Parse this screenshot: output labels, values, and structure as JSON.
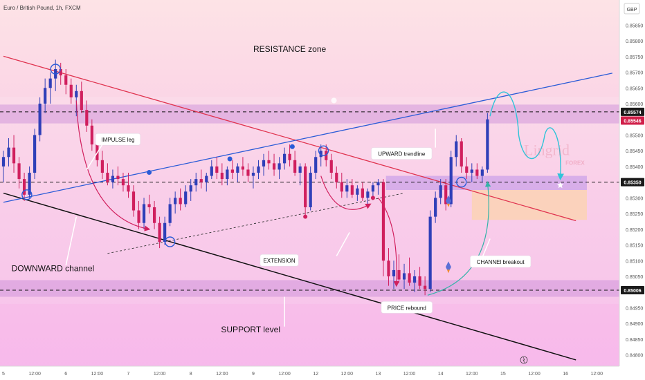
{
  "header": {
    "symbol_title": "Euro / British Pound, 1h, FXCM",
    "currency": "GBP"
  },
  "chart_data": {
    "type": "candlestick",
    "title": "Euro / British Pound, 1h, FXCM",
    "ylabel": "GBP",
    "ylim": [
      0.84764,
      0.8593
    ],
    "y_ticks": [
      0.848,
      0.8485,
      0.849,
      0.8495,
      0.85,
      0.8505,
      0.851,
      0.8515,
      0.852,
      0.8525,
      0.853,
      0.8535,
      0.854,
      0.8545,
      0.855,
      0.8555,
      0.856,
      0.8565,
      0.857,
      0.8575,
      0.858,
      0.8585
    ],
    "y_tick_labels": [
      "0.84800",
      "0.84850",
      "0.84900",
      "0.84950",
      "0.85000",
      "0.85050",
      "0.85100",
      "0.85150",
      "0.85200",
      "0.85250",
      "0.85300",
      "0.85350",
      "0.85400",
      "0.85450",
      "0.85500",
      "0.85550",
      "0.85600",
      "0.85650",
      "0.85700",
      "0.85750",
      "0.85800",
      "0.85850"
    ],
    "x_tick_labels": [
      "5",
      "12:00",
      "6",
      "12:00",
      "7",
      "12:00",
      "8",
      "12:00",
      "9",
      "12:00",
      "12",
      "12:00",
      "13",
      "12:00",
      "14",
      "12:00",
      "15",
      "12:00",
      "16",
      "12:00"
    ],
    "x_tick_hours": [
      0,
      12,
      24,
      36,
      48,
      60,
      72,
      84,
      96,
      108,
      120,
      132,
      144,
      156,
      168,
      180,
      192,
      204,
      216,
      228
    ],
    "price_labels": [
      {
        "value": 0.85574,
        "text": "0.85574",
        "bg": "#1a1a1a"
      },
      {
        "value": 0.85546,
        "text": "0.85546",
        "bg": "#d1204a"
      },
      {
        "value": 0.8535,
        "text": "0.85350",
        "bg": "#1a1a1a"
      },
      {
        "value": 0.85006,
        "text": "0.85006",
        "bg": "#1a1a1a"
      }
    ],
    "horizontal_levels": [
      0.85574,
      0.8535,
      0.85006
    ],
    "zones": [
      {
        "name": "resistance",
        "from": 0.85537,
        "to": 0.85597
      },
      {
        "name": "support",
        "from": 0.84985,
        "to": 0.85038
      },
      {
        "name": "breakout-box",
        "from": 0.85325,
        "to": 0.8537
      }
    ],
    "trendlines": [
      {
        "name": "channel-upper",
        "color": "#e0334f",
        "from": [
          0,
          0.85751
        ],
        "to": [
          220,
          0.85227
        ]
      },
      {
        "name": "channel-lower",
        "color": "#111111",
        "from": [
          0,
          0.85315
        ],
        "to": [
          220,
          0.84784
        ]
      },
      {
        "name": "upward-trendline",
        "color": "#2a5bd7",
        "from": [
          0,
          0.85286
        ],
        "to": [
          234,
          0.85697
        ]
      },
      {
        "name": "extension-line",
        "color": "#333333",
        "from": [
          40,
          0.85123
        ],
        "to": [
          154,
          0.85315
        ]
      }
    ],
    "candles": [
      {
        "t": 0,
        "o": 0.854,
        "h": 0.8545,
        "l": 0.8535,
        "c": 0.8543
      },
      {
        "t": 2,
        "o": 0.8543,
        "h": 0.8549,
        "l": 0.854,
        "c": 0.8546
      },
      {
        "t": 4,
        "o": 0.8546,
        "h": 0.855,
        "l": 0.8538,
        "c": 0.8541
      },
      {
        "t": 6,
        "o": 0.8541,
        "h": 0.8543,
        "l": 0.8533,
        "c": 0.8536
      },
      {
        "t": 8,
        "o": 0.8536,
        "h": 0.8538,
        "l": 0.8529,
        "c": 0.8531
      },
      {
        "t": 10,
        "o": 0.8531,
        "h": 0.854,
        "l": 0.853,
        "c": 0.8538
      },
      {
        "t": 12,
        "o": 0.8538,
        "h": 0.8552,
        "l": 0.8536,
        "c": 0.855
      },
      {
        "t": 14,
        "o": 0.855,
        "h": 0.8562,
        "l": 0.8548,
        "c": 0.856
      },
      {
        "t": 16,
        "o": 0.856,
        "h": 0.8568,
        "l": 0.8557,
        "c": 0.8565
      },
      {
        "t": 18,
        "o": 0.8565,
        "h": 0.857,
        "l": 0.856,
        "c": 0.8568
      },
      {
        "t": 20,
        "o": 0.8568,
        "h": 0.8574,
        "l": 0.8564,
        "c": 0.8571
      },
      {
        "t": 22,
        "o": 0.8571,
        "h": 0.8573,
        "l": 0.8566,
        "c": 0.8569
      },
      {
        "t": 24,
        "o": 0.8569,
        "h": 0.8571,
        "l": 0.8563,
        "c": 0.8566
      },
      {
        "t": 26,
        "o": 0.8566,
        "h": 0.8568,
        "l": 0.856,
        "c": 0.8562
      },
      {
        "t": 28,
        "o": 0.8562,
        "h": 0.8566,
        "l": 0.8556,
        "c": 0.8564
      },
      {
        "t": 30,
        "o": 0.8564,
        "h": 0.8567,
        "l": 0.8557,
        "c": 0.8558
      },
      {
        "t": 32,
        "o": 0.8558,
        "h": 0.8561,
        "l": 0.8551,
        "c": 0.8553
      },
      {
        "t": 34,
        "o": 0.8553,
        "h": 0.8555,
        "l": 0.8545,
        "c": 0.8547
      },
      {
        "t": 36,
        "o": 0.8547,
        "h": 0.8549,
        "l": 0.854,
        "c": 0.8542
      },
      {
        "t": 38,
        "o": 0.8542,
        "h": 0.8545,
        "l": 0.8536,
        "c": 0.8538
      },
      {
        "t": 40,
        "o": 0.8538,
        "h": 0.8541,
        "l": 0.8534,
        "c": 0.8535
      },
      {
        "t": 42,
        "o": 0.8535,
        "h": 0.8539,
        "l": 0.8533,
        "c": 0.8537
      },
      {
        "t": 44,
        "o": 0.8537,
        "h": 0.854,
        "l": 0.8534,
        "c": 0.8536
      },
      {
        "t": 46,
        "o": 0.8536,
        "h": 0.8538,
        "l": 0.8532,
        "c": 0.8534
      },
      {
        "t": 48,
        "o": 0.8534,
        "h": 0.8538,
        "l": 0.853,
        "c": 0.8532
      },
      {
        "t": 50,
        "o": 0.8532,
        "h": 0.8534,
        "l": 0.8524,
        "c": 0.8526
      },
      {
        "t": 52,
        "o": 0.8526,
        "h": 0.8529,
        "l": 0.852,
        "c": 0.8522
      },
      {
        "t": 54,
        "o": 0.8522,
        "h": 0.853,
        "l": 0.852,
        "c": 0.8528
      },
      {
        "t": 56,
        "o": 0.8528,
        "h": 0.8531,
        "l": 0.8525,
        "c": 0.8527
      },
      {
        "t": 58,
        "o": 0.8527,
        "h": 0.8529,
        "l": 0.852,
        "c": 0.8522
      },
      {
        "t": 60,
        "o": 0.8522,
        "h": 0.8524,
        "l": 0.8514,
        "c": 0.8516
      },
      {
        "t": 62,
        "o": 0.8516,
        "h": 0.8524,
        "l": 0.8515,
        "c": 0.8522
      },
      {
        "t": 64,
        "o": 0.8522,
        "h": 0.853,
        "l": 0.8521,
        "c": 0.8528
      },
      {
        "t": 66,
        "o": 0.8528,
        "h": 0.8532,
        "l": 0.8525,
        "c": 0.853
      },
      {
        "t": 68,
        "o": 0.853,
        "h": 0.8533,
        "l": 0.8526,
        "c": 0.8528
      },
      {
        "t": 70,
        "o": 0.8528,
        "h": 0.8534,
        "l": 0.8527,
        "c": 0.8532
      },
      {
        "t": 72,
        "o": 0.8532,
        "h": 0.8536,
        "l": 0.8529,
        "c": 0.8534
      },
      {
        "t": 74,
        "o": 0.8534,
        "h": 0.8538,
        "l": 0.8532,
        "c": 0.8536
      },
      {
        "t": 76,
        "o": 0.8536,
        "h": 0.8539,
        "l": 0.8533,
        "c": 0.8535
      },
      {
        "t": 78,
        "o": 0.8535,
        "h": 0.8538,
        "l": 0.8532,
        "c": 0.8537
      },
      {
        "t": 80,
        "o": 0.8537,
        "h": 0.8542,
        "l": 0.8536,
        "c": 0.854
      },
      {
        "t": 82,
        "o": 0.854,
        "h": 0.8543,
        "l": 0.8536,
        "c": 0.8538
      },
      {
        "t": 84,
        "o": 0.8538,
        "h": 0.8541,
        "l": 0.8534,
        "c": 0.8536
      },
      {
        "t": 86,
        "o": 0.8536,
        "h": 0.854,
        "l": 0.8534,
        "c": 0.8539
      },
      {
        "t": 88,
        "o": 0.8539,
        "h": 0.8542,
        "l": 0.8536,
        "c": 0.8538
      },
      {
        "t": 90,
        "o": 0.8538,
        "h": 0.8541,
        "l": 0.8535,
        "c": 0.854
      },
      {
        "t": 92,
        "o": 0.854,
        "h": 0.8543,
        "l": 0.8537,
        "c": 0.8539
      },
      {
        "t": 94,
        "o": 0.8539,
        "h": 0.8541,
        "l": 0.8535,
        "c": 0.8537
      },
      {
        "t": 96,
        "o": 0.8537,
        "h": 0.854,
        "l": 0.8533,
        "c": 0.8538
      },
      {
        "t": 98,
        "o": 0.8538,
        "h": 0.8542,
        "l": 0.8536,
        "c": 0.854
      },
      {
        "t": 100,
        "o": 0.854,
        "h": 0.8544,
        "l": 0.8537,
        "c": 0.8542
      },
      {
        "t": 102,
        "o": 0.8542,
        "h": 0.8545,
        "l": 0.8539,
        "c": 0.8541
      },
      {
        "t": 104,
        "o": 0.8541,
        "h": 0.8544,
        "l": 0.8537,
        "c": 0.8539
      },
      {
        "t": 106,
        "o": 0.8539,
        "h": 0.8543,
        "l": 0.8536,
        "c": 0.8541
      },
      {
        "t": 108,
        "o": 0.8541,
        "h": 0.8546,
        "l": 0.8539,
        "c": 0.8544
      },
      {
        "t": 110,
        "o": 0.8544,
        "h": 0.8547,
        "l": 0.854,
        "c": 0.8542
      },
      {
        "t": 112,
        "o": 0.8542,
        "h": 0.8545,
        "l": 0.8537,
        "c": 0.8538
      },
      {
        "t": 114,
        "o": 0.8538,
        "h": 0.8541,
        "l": 0.8534,
        "c": 0.854
      },
      {
        "t": 116,
        "o": 0.854,
        "h": 0.8541,
        "l": 0.8524,
        "c": 0.8527
      },
      {
        "t": 118,
        "o": 0.8527,
        "h": 0.854,
        "l": 0.8526,
        "c": 0.8538
      },
      {
        "t": 120,
        "o": 0.8538,
        "h": 0.8545,
        "l": 0.8536,
        "c": 0.8543
      },
      {
        "t": 122,
        "o": 0.8543,
        "h": 0.8547,
        "l": 0.854,
        "c": 0.8545
      },
      {
        "t": 124,
        "o": 0.8545,
        "h": 0.8547,
        "l": 0.854,
        "c": 0.8542
      },
      {
        "t": 126,
        "o": 0.8542,
        "h": 0.8544,
        "l": 0.8536,
        "c": 0.8538
      },
      {
        "t": 128,
        "o": 0.8538,
        "h": 0.854,
        "l": 0.8533,
        "c": 0.8535
      },
      {
        "t": 130,
        "o": 0.8535,
        "h": 0.8538,
        "l": 0.853,
        "c": 0.8532
      },
      {
        "t": 132,
        "o": 0.8532,
        "h": 0.8536,
        "l": 0.853,
        "c": 0.8534
      },
      {
        "t": 134,
        "o": 0.8534,
        "h": 0.8536,
        "l": 0.853,
        "c": 0.8531
      },
      {
        "t": 136,
        "o": 0.8531,
        "h": 0.8534,
        "l": 0.8529,
        "c": 0.8533
      },
      {
        "t": 138,
        "o": 0.8533,
        "h": 0.8535,
        "l": 0.8529,
        "c": 0.853
      },
      {
        "t": 140,
        "o": 0.853,
        "h": 0.8533,
        "l": 0.8527,
        "c": 0.8532
      },
      {
        "t": 142,
        "o": 0.8532,
        "h": 0.8535,
        "l": 0.853,
        "c": 0.8534
      },
      {
        "t": 144,
        "o": 0.8534,
        "h": 0.8536,
        "l": 0.8531,
        "c": 0.8535
      },
      {
        "t": 146,
        "o": 0.8535,
        "h": 0.8536,
        "l": 0.8505,
        "c": 0.851
      },
      {
        "t": 148,
        "o": 0.851,
        "h": 0.8514,
        "l": 0.8502,
        "c": 0.8505
      },
      {
        "t": 150,
        "o": 0.8505,
        "h": 0.851,
        "l": 0.8501,
        "c": 0.8507
      },
      {
        "t": 152,
        "o": 0.8507,
        "h": 0.8512,
        "l": 0.8503,
        "c": 0.8504
      },
      {
        "t": 154,
        "o": 0.8504,
        "h": 0.8509,
        "l": 0.8501,
        "c": 0.8506
      },
      {
        "t": 156,
        "o": 0.8506,
        "h": 0.8511,
        "l": 0.8502,
        "c": 0.8503
      },
      {
        "t": 158,
        "o": 0.8503,
        "h": 0.8507,
        "l": 0.85,
        "c": 0.8505
      },
      {
        "t": 160,
        "o": 0.8505,
        "h": 0.8508,
        "l": 0.8501,
        "c": 0.8502
      },
      {
        "t": 162,
        "o": 0.8502,
        "h": 0.8505,
        "l": 0.8499,
        "c": 0.8501
      },
      {
        "t": 164,
        "o": 0.8501,
        "h": 0.8526,
        "l": 0.85,
        "c": 0.8524
      },
      {
        "t": 166,
        "o": 0.8524,
        "h": 0.8532,
        "l": 0.8522,
        "c": 0.853
      },
      {
        "t": 168,
        "o": 0.853,
        "h": 0.8536,
        "l": 0.8528,
        "c": 0.8534
      },
      {
        "t": 170,
        "o": 0.8534,
        "h": 0.8536,
        "l": 0.8526,
        "c": 0.8528
      },
      {
        "t": 172,
        "o": 0.8528,
        "h": 0.8545,
        "l": 0.8527,
        "c": 0.8543
      },
      {
        "t": 174,
        "o": 0.8543,
        "h": 0.855,
        "l": 0.854,
        "c": 0.8548
      },
      {
        "t": 176,
        "o": 0.8548,
        "h": 0.8549,
        "l": 0.8538,
        "c": 0.854
      },
      {
        "t": 178,
        "o": 0.854,
        "h": 0.8543,
        "l": 0.8536,
        "c": 0.8538
      },
      {
        "t": 180,
        "o": 0.8538,
        "h": 0.8541,
        "l": 0.8535,
        "c": 0.8539
      },
      {
        "t": 182,
        "o": 0.8539,
        "h": 0.8541,
        "l": 0.8536,
        "c": 0.8537
      },
      {
        "t": 184,
        "o": 0.8537,
        "h": 0.854,
        "l": 0.8535,
        "c": 0.8539
      },
      {
        "t": 186,
        "o": 0.8539,
        "h": 0.8557,
        "l": 0.8538,
        "c": 0.8555
      }
    ],
    "annotations": [
      {
        "text": "RESISTANCE zone",
        "t": 110,
        "y": 0.85765
      },
      {
        "text": "IMPULSE leg",
        "t": 44,
        "y": 0.85483
      },
      {
        "text": "UPWARD trendline",
        "t": 153,
        "y": 0.85438
      },
      {
        "text": "DOWNWARD channel",
        "t": 19,
        "y": 0.85067
      },
      {
        "text": "EXTENSION",
        "t": 106,
        "y": 0.85098
      },
      {
        "text": "CHANNEl breakout",
        "t": 191,
        "y": 0.85094
      },
      {
        "text": "PRICE rebound",
        "t": 155,
        "y": 0.84948
      },
      {
        "text": "SUPPORT level",
        "t": 95,
        "y": 0.84872
      }
    ],
    "watermark": {
      "brand": "Lingrid",
      "sub": "FOREX"
    }
  }
}
